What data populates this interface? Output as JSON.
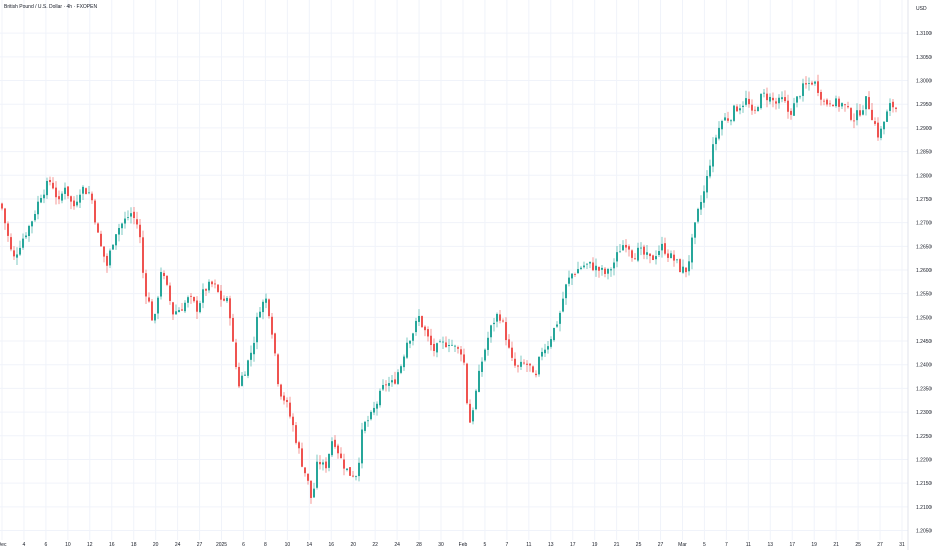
{
  "header": {
    "title": "British Pound / U.S. Dollar · 4h · FXOPEN"
  },
  "colors": {
    "up": "#26a69a",
    "down": "#ef5350",
    "grid": "#f0f3fa",
    "axis_text": "#131722",
    "background": "#ffffff"
  },
  "chart_data": {
    "type": "candlestick",
    "title": "British Pound / U.S. Dollar · 4h · FXOPEN",
    "y_unit": "USD",
    "y_range": [
      1.203,
      1.317
    ],
    "y_ticks": [
      "1.31000",
      "1.30500",
      "1.30000",
      "1.29500",
      "1.29000",
      "1.28500",
      "1.28000",
      "1.27500",
      "1.27000",
      "1.26500",
      "1.26000",
      "1.25500",
      "1.25000",
      "1.24500",
      "1.24000",
      "1.23500",
      "1.23000",
      "1.22500",
      "1.22000",
      "1.21500",
      "1.21000",
      "1.20500"
    ],
    "x_ticks": [
      "Dec",
      "4",
      "6",
      "10",
      "12",
      "16",
      "18",
      "20",
      "24",
      "27",
      "2025",
      "6",
      "8",
      "10",
      "14",
      "16",
      "20",
      "22",
      "24",
      "28",
      "30",
      "Feb",
      "5",
      "7",
      "11",
      "13",
      "17",
      "19",
      "21",
      "25",
      "27",
      "Mar",
      "5",
      "7",
      "11",
      "13",
      "17",
      "19",
      "21",
      "25",
      "27",
      "31"
    ],
    "grid": true,
    "series_path": [
      [
        0,
        1.274
      ],
      [
        6,
        1.268
      ],
      [
        12,
        1.262
      ],
      [
        20,
        1.266
      ],
      [
        30,
        1.27
      ],
      [
        40,
        1.276
      ],
      [
        50,
        1.279
      ],
      [
        58,
        1.274
      ],
      [
        64,
        1.278
      ],
      [
        72,
        1.273
      ],
      [
        80,
        1.2775
      ],
      [
        90,
        1.276
      ],
      [
        98,
        1.266
      ],
      [
        106,
        1.261
      ],
      [
        114,
        1.268
      ],
      [
        122,
        1.27
      ],
      [
        130,
        1.272
      ],
      [
        138,
        1.269
      ],
      [
        143,
        1.257
      ],
      [
        148,
        1.253
      ],
      [
        153,
        1.248
      ],
      [
        160,
        1.26
      ],
      [
        166,
        1.256
      ],
      [
        172,
        1.251
      ],
      [
        180,
        1.252
      ],
      [
        188,
        1.254
      ],
      [
        196,
        1.252
      ],
      [
        204,
        1.256
      ],
      [
        212,
        1.257
      ],
      [
        220,
        1.254
      ],
      [
        228,
        1.253
      ],
      [
        233,
        1.242
      ],
      [
        238,
        1.236
      ],
      [
        246,
        1.24
      ],
      [
        252,
        1.244
      ],
      [
        258,
        1.252
      ],
      [
        266,
        1.254
      ],
      [
        272,
        1.246
      ],
      [
        278,
        1.235
      ],
      [
        285,
        1.232
      ],
      [
        292,
        1.227
      ],
      [
        300,
        1.22
      ],
      [
        306,
        1.216
      ],
      [
        311,
        1.211
      ],
      [
        317,
        1.22
      ],
      [
        324,
        1.218
      ],
      [
        332,
        1.225
      ],
      [
        340,
        1.22
      ],
      [
        348,
        1.217
      ],
      [
        356,
        1.217
      ],
      [
        362,
        1.227
      ],
      [
        370,
        1.229
      ],
      [
        376,
        1.232
      ],
      [
        384,
        1.236
      ],
      [
        392,
        1.236
      ],
      [
        400,
        1.24
      ],
      [
        406,
        1.245
      ],
      [
        412,
        1.247
      ],
      [
        418,
        1.25
      ],
      [
        424,
        1.247
      ],
      [
        432,
        1.243
      ],
      [
        440,
        1.244
      ],
      [
        448,
        1.245
      ],
      [
        456,
        1.243
      ],
      [
        462,
        1.243
      ],
      [
        468,
        1.227
      ],
      [
        474,
        1.233
      ],
      [
        480,
        1.24
      ],
      [
        486,
        1.245
      ],
      [
        492,
        1.249
      ],
      [
        498,
        1.251
      ],
      [
        504,
        1.247
      ],
      [
        510,
        1.241
      ],
      [
        516,
        1.239
      ],
      [
        522,
        1.24
      ],
      [
        528,
        1.24
      ],
      [
        534,
        1.236
      ],
      [
        540,
        1.243
      ],
      [
        546,
        1.244
      ],
      [
        552,
        1.247
      ],
      [
        558,
        1.25
      ],
      [
        564,
        1.256
      ],
      [
        570,
        1.259
      ],
      [
        576,
        1.26
      ],
      [
        582,
        1.261
      ],
      [
        590,
        1.261
      ],
      [
        598,
        1.26
      ],
      [
        606,
        1.259
      ],
      [
        614,
        1.262
      ],
      [
        620,
        1.265
      ],
      [
        626,
        1.266
      ],
      [
        632,
        1.263
      ],
      [
        638,
        1.264
      ],
      [
        644,
        1.263
      ],
      [
        650,
        1.262
      ],
      [
        656,
        1.264
      ],
      [
        662,
        1.265
      ],
      [
        668,
        1.263
      ],
      [
        674,
        1.262
      ],
      [
        680,
        1.26
      ],
      [
        686,
        1.26
      ],
      [
        692,
        1.267
      ],
      [
        698,
        1.273
      ],
      [
        704,
        1.277
      ],
      [
        710,
        1.284
      ],
      [
        716,
        1.289
      ],
      [
        722,
        1.292
      ],
      [
        728,
        1.292
      ],
      [
        734,
        1.294
      ],
      [
        740,
        1.295
      ],
      [
        746,
        1.296
      ],
      [
        752,
        1.292
      ],
      [
        758,
        1.296
      ],
      [
        764,
        1.297
      ],
      [
        770,
        1.296
      ],
      [
        776,
        1.295
      ],
      [
        782,
        1.296
      ],
      [
        788,
        1.293
      ],
      [
        794,
        1.295
      ],
      [
        800,
        1.298
      ],
      [
        806,
        1.299
      ],
      [
        812,
        1.3
      ],
      [
        818,
        1.298
      ],
      [
        824,
        1.295
      ],
      [
        830,
        1.296
      ],
      [
        836,
        1.295
      ],
      [
        842,
        1.295
      ],
      [
        848,
        1.293
      ],
      [
        854,
        1.292
      ],
      [
        860,
        1.294
      ],
      [
        866,
        1.296
      ],
      [
        872,
        1.292
      ],
      [
        878,
        1.288
      ],
      [
        884,
        1.292
      ],
      [
        890,
        1.295
      ],
      [
        896,
        1.294
      ]
    ]
  }
}
